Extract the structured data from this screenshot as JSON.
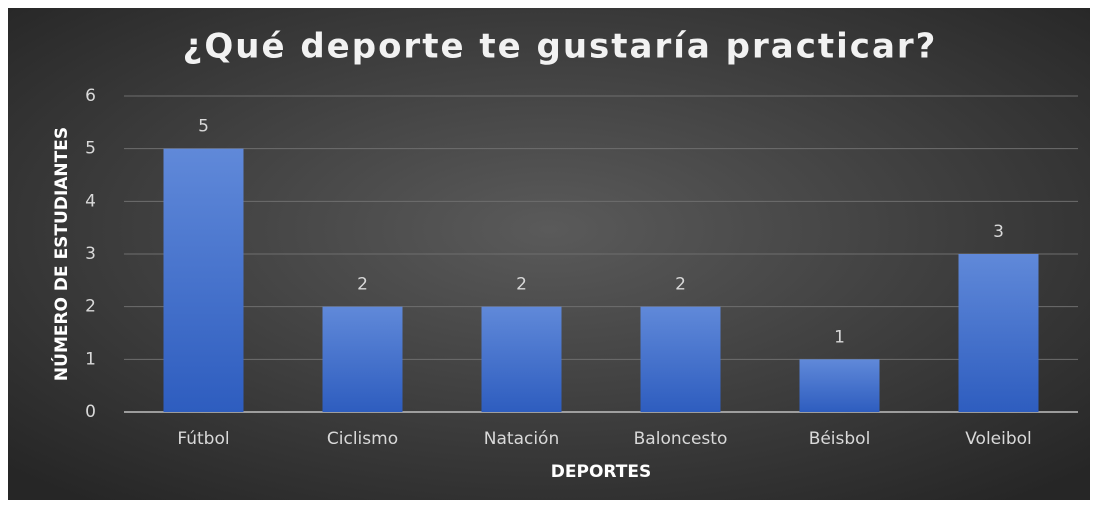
{
  "chart_data": {
    "type": "bar",
    "title": "¿Qué deporte te gustaría practicar?",
    "x_label": "DEPORTES",
    "y_label": "NÚMERO DE  ESTUDIANTES",
    "categories": [
      "Fútbol",
      "Ciclismo",
      "Natación",
      "Baloncesto",
      "Béisbol",
      "Voleibol"
    ],
    "values": [
      5,
      2,
      2,
      2,
      1,
      3
    ],
    "color": "#4a74cf",
    "ylim": [
      0,
      6
    ],
    "yticks": [
      0,
      1,
      2,
      3,
      4,
      5,
      6
    ],
    "grid": true
  }
}
